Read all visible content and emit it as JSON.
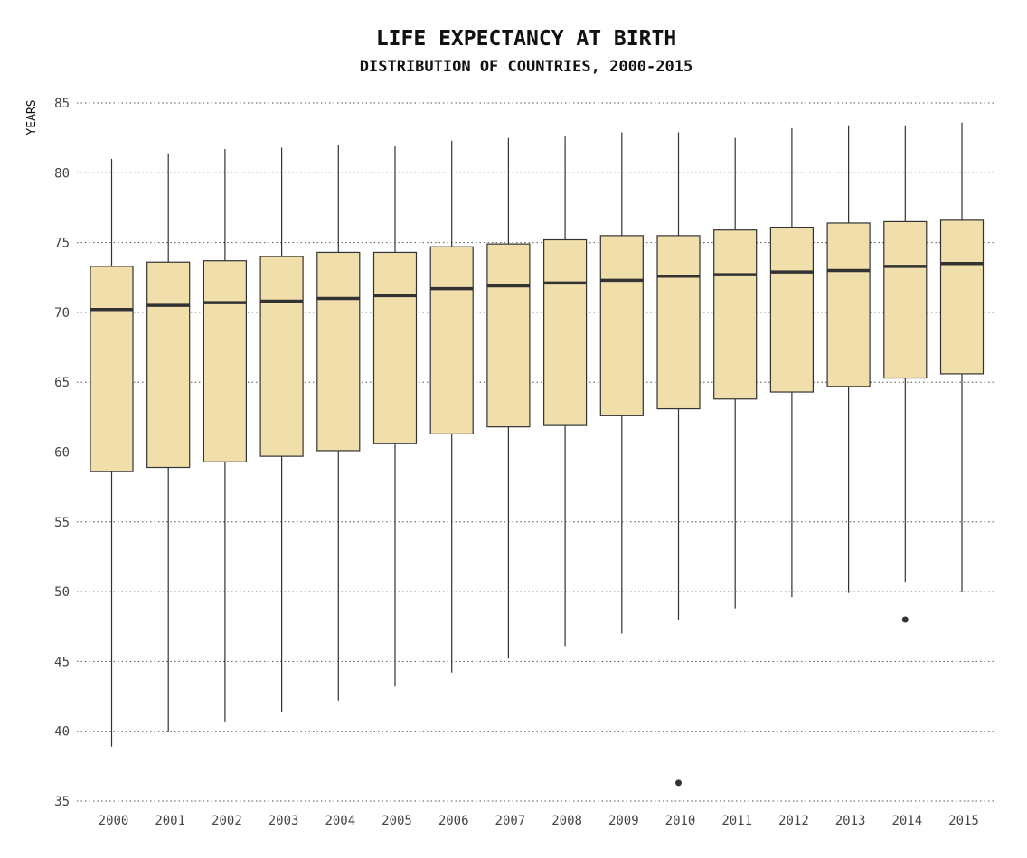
{
  "chart_data": {
    "type": "box",
    "title": "LIFE EXPECTANCY AT BIRTH",
    "subtitle": "DISTRIBUTION OF COUNTRIES, 2000-2015",
    "ylabel": "YEARS",
    "xlabel": "",
    "ylim": [
      35,
      85
    ],
    "yticks": [
      35,
      40,
      45,
      50,
      55,
      60,
      65,
      70,
      75,
      80,
      85
    ],
    "grid": "horizontal-dotted",
    "box_color": "#f0dfab",
    "line_color": "#333333",
    "categories": [
      "2000",
      "2001",
      "2002",
      "2003",
      "2004",
      "2005",
      "2006",
      "2007",
      "2008",
      "2009",
      "2010",
      "2011",
      "2012",
      "2013",
      "2014",
      "2015"
    ],
    "boxes": [
      {
        "year": "2000",
        "whisker_low": 38.9,
        "q1": 58.6,
        "median": 70.2,
        "q3": 73.3,
        "whisker_high": 81.0,
        "outliers": []
      },
      {
        "year": "2001",
        "whisker_low": 40.0,
        "q1": 58.9,
        "median": 70.5,
        "q3": 73.6,
        "whisker_high": 81.4,
        "outliers": []
      },
      {
        "year": "2002",
        "whisker_low": 40.7,
        "q1": 59.3,
        "median": 70.7,
        "q3": 73.7,
        "whisker_high": 81.7,
        "outliers": []
      },
      {
        "year": "2003",
        "whisker_low": 41.4,
        "q1": 59.7,
        "median": 70.8,
        "q3": 74.0,
        "whisker_high": 81.8,
        "outliers": []
      },
      {
        "year": "2004",
        "whisker_low": 42.2,
        "q1": 60.1,
        "median": 71.0,
        "q3": 74.3,
        "whisker_high": 82.0,
        "outliers": []
      },
      {
        "year": "2005",
        "whisker_low": 43.2,
        "q1": 60.6,
        "median": 71.2,
        "q3": 74.3,
        "whisker_high": 81.9,
        "outliers": []
      },
      {
        "year": "2006",
        "whisker_low": 44.2,
        "q1": 61.3,
        "median": 71.7,
        "q3": 74.7,
        "whisker_high": 82.3,
        "outliers": []
      },
      {
        "year": "2007",
        "whisker_low": 45.2,
        "q1": 61.8,
        "median": 71.9,
        "q3": 74.9,
        "whisker_high": 82.5,
        "outliers": []
      },
      {
        "year": "2008",
        "whisker_low": 46.1,
        "q1": 61.9,
        "median": 72.1,
        "q3": 75.2,
        "whisker_high": 82.6,
        "outliers": []
      },
      {
        "year": "2009",
        "whisker_low": 47.0,
        "q1": 62.6,
        "median": 72.3,
        "q3": 75.5,
        "whisker_high": 82.9,
        "outliers": []
      },
      {
        "year": "2010",
        "whisker_low": 48.0,
        "q1": 63.1,
        "median": 72.6,
        "q3": 75.5,
        "whisker_high": 82.9,
        "outliers": [
          36.3
        ]
      },
      {
        "year": "2011",
        "whisker_low": 48.8,
        "q1": 63.8,
        "median": 72.7,
        "q3": 75.9,
        "whisker_high": 82.5,
        "outliers": []
      },
      {
        "year": "2012",
        "whisker_low": 49.6,
        "q1": 64.3,
        "median": 72.9,
        "q3": 76.1,
        "whisker_high": 83.2,
        "outliers": []
      },
      {
        "year": "2013",
        "whisker_low": 49.9,
        "q1": 64.7,
        "median": 73.0,
        "q3": 76.4,
        "whisker_high": 83.4,
        "outliers": []
      },
      {
        "year": "2014",
        "whisker_low": 50.7,
        "q1": 65.3,
        "median": 73.3,
        "q3": 76.5,
        "whisker_high": 83.4,
        "outliers": [
          48.0
        ]
      },
      {
        "year": "2015",
        "whisker_low": 50.0,
        "q1": 65.6,
        "median": 73.5,
        "q3": 76.6,
        "whisker_high": 83.6,
        "outliers": []
      }
    ]
  }
}
